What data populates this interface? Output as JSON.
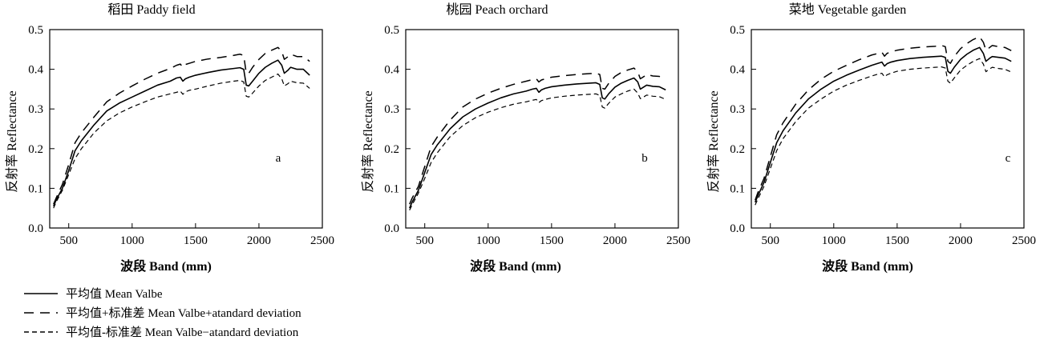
{
  "chart_data": [
    {
      "type": "line",
      "title": "稻田 Paddy field",
      "xlabel": "波段 Band (mm)",
      "ylabel": "反射率 Reflectance",
      "panel_letter": "a",
      "xlim": [
        350,
        2500
      ],
      "ylim": [
        0,
        0.5
      ],
      "xticks": [
        "500",
        "1000",
        "1500",
        "2000",
        "2500"
      ],
      "yticks": [
        "0.0",
        "0.1",
        "0.2",
        "0.3",
        "0.4",
        "0.5"
      ],
      "series": [
        {
          "name": "平均值 Mean Valbe",
          "style": "solid",
          "x": [
            380,
            400,
            450,
            500,
            550,
            600,
            700,
            800,
            900,
            1000,
            1100,
            1200,
            1300,
            1350,
            1380,
            1400,
            1420,
            1450,
            1500,
            1600,
            1700,
            1800,
            1850,
            1880,
            1900,
            1920,
            1950,
            2000,
            2050,
            2100,
            2150,
            2180,
            2200,
            2230,
            2250,
            2300,
            2350,
            2400
          ],
          "y": [
            0.055,
            0.07,
            0.1,
            0.145,
            0.195,
            0.22,
            0.26,
            0.295,
            0.315,
            0.33,
            0.345,
            0.36,
            0.37,
            0.378,
            0.38,
            0.37,
            0.376,
            0.38,
            0.385,
            0.392,
            0.398,
            0.402,
            0.404,
            0.4,
            0.36,
            0.358,
            0.37,
            0.39,
            0.405,
            0.415,
            0.423,
            0.41,
            0.39,
            0.398,
            0.405,
            0.4,
            0.4,
            0.385
          ]
        },
        {
          "name": "平均值+标准差 Mean Valbe+atandard deviation",
          "style": "dashed",
          "x": [
            380,
            400,
            450,
            500,
            550,
            600,
            700,
            800,
            900,
            1000,
            1100,
            1200,
            1300,
            1350,
            1380,
            1400,
            1420,
            1450,
            1500,
            1600,
            1700,
            1800,
            1850,
            1880,
            1900,
            1920,
            1950,
            2000,
            2050,
            2100,
            2150,
            2180,
            2200,
            2230,
            2250,
            2300,
            2350,
            2400
          ],
          "y": [
            0.06,
            0.075,
            0.11,
            0.16,
            0.215,
            0.24,
            0.28,
            0.318,
            0.34,
            0.358,
            0.375,
            0.39,
            0.402,
            0.41,
            0.413,
            0.405,
            0.412,
            0.415,
            0.42,
            0.426,
            0.43,
            0.435,
            0.438,
            0.435,
            0.39,
            0.39,
            0.405,
            0.425,
            0.44,
            0.448,
            0.455,
            0.445,
            0.425,
            0.432,
            0.438,
            0.432,
            0.432,
            0.42
          ]
        },
        {
          "name": "平均值-标准差 Mean Valbe−atandard deviation",
          "style": "short-dashed",
          "x": [
            380,
            400,
            450,
            500,
            550,
            600,
            700,
            800,
            900,
            1000,
            1100,
            1200,
            1300,
            1350,
            1380,
            1400,
            1420,
            1450,
            1500,
            1600,
            1700,
            1800,
            1850,
            1880,
            1900,
            1920,
            1950,
            2000,
            2050,
            2100,
            2150,
            2180,
            2200,
            2230,
            2250,
            2300,
            2350,
            2400
          ],
          "y": [
            0.05,
            0.065,
            0.095,
            0.135,
            0.175,
            0.2,
            0.24,
            0.27,
            0.29,
            0.305,
            0.318,
            0.33,
            0.338,
            0.342,
            0.345,
            0.337,
            0.343,
            0.347,
            0.35,
            0.358,
            0.365,
            0.37,
            0.372,
            0.368,
            0.332,
            0.33,
            0.34,
            0.358,
            0.372,
            0.38,
            0.388,
            0.376,
            0.358,
            0.364,
            0.37,
            0.366,
            0.365,
            0.352
          ]
        }
      ]
    },
    {
      "type": "line",
      "title": "桃园 Peach orchard",
      "xlabel": "波段 Band (mm)",
      "ylabel": "反射率 Reflectance",
      "panel_letter": "b",
      "xlim": [
        350,
        2500
      ],
      "ylim": [
        0,
        0.5
      ],
      "xticks": [
        "500",
        "1000",
        "1500",
        "2000",
        "2500"
      ],
      "yticks": [
        "0.0",
        "0.1",
        "0.2",
        "0.3",
        "0.4",
        "0.5"
      ],
      "series": [
        {
          "name": "平均值 Mean Valbe",
          "style": "solid",
          "x": [
            380,
            400,
            450,
            500,
            550,
            600,
            700,
            800,
            900,
            1000,
            1100,
            1200,
            1300,
            1350,
            1380,
            1400,
            1420,
            1450,
            1500,
            1600,
            1700,
            1800,
            1850,
            1880,
            1900,
            1920,
            1950,
            2000,
            2050,
            2100,
            2150,
            2180,
            2200,
            2230,
            2250,
            2300,
            2350,
            2400
          ],
          "y": [
            0.05,
            0.065,
            0.095,
            0.14,
            0.185,
            0.21,
            0.25,
            0.28,
            0.3,
            0.315,
            0.328,
            0.338,
            0.345,
            0.35,
            0.352,
            0.342,
            0.348,
            0.352,
            0.356,
            0.36,
            0.363,
            0.365,
            0.366,
            0.362,
            0.328,
            0.325,
            0.338,
            0.355,
            0.365,
            0.372,
            0.378,
            0.368,
            0.35,
            0.356,
            0.36,
            0.357,
            0.356,
            0.348
          ]
        },
        {
          "name": "平均值+标准差 Mean Valbe+atandard deviation",
          "style": "dashed",
          "x": [
            380,
            400,
            450,
            500,
            550,
            600,
            700,
            800,
            900,
            1000,
            1100,
            1200,
            1300,
            1350,
            1380,
            1400,
            1420,
            1450,
            1500,
            1600,
            1700,
            1800,
            1850,
            1880,
            1900,
            1920,
            1950,
            2000,
            2050,
            2100,
            2150,
            2180,
            2200,
            2230,
            2250,
            2300,
            2350,
            2400
          ],
          "y": [
            0.06,
            0.075,
            0.105,
            0.155,
            0.205,
            0.23,
            0.272,
            0.305,
            0.325,
            0.34,
            0.352,
            0.362,
            0.37,
            0.374,
            0.376,
            0.368,
            0.373,
            0.376,
            0.38,
            0.384,
            0.387,
            0.389,
            0.39,
            0.387,
            0.352,
            0.35,
            0.364,
            0.382,
            0.392,
            0.398,
            0.403,
            0.393,
            0.376,
            0.382,
            0.387,
            0.383,
            0.382,
            0.375
          ]
        },
        {
          "name": "平均值-标准差 Mean Valbe−atandard deviation",
          "style": "short-dashed",
          "x": [
            380,
            400,
            450,
            500,
            550,
            600,
            700,
            800,
            900,
            1000,
            1100,
            1200,
            1300,
            1350,
            1380,
            1400,
            1420,
            1450,
            1500,
            1600,
            1700,
            1800,
            1850,
            1880,
            1900,
            1920,
            1950,
            2000,
            2050,
            2100,
            2150,
            2180,
            2200,
            2230,
            2250,
            2300,
            2350,
            2400
          ],
          "y": [
            0.045,
            0.058,
            0.088,
            0.125,
            0.165,
            0.19,
            0.23,
            0.258,
            0.278,
            0.292,
            0.303,
            0.312,
            0.318,
            0.322,
            0.324,
            0.316,
            0.321,
            0.324,
            0.328,
            0.332,
            0.335,
            0.337,
            0.338,
            0.334,
            0.305,
            0.302,
            0.314,
            0.33,
            0.338,
            0.345,
            0.35,
            0.34,
            0.326,
            0.331,
            0.335,
            0.332,
            0.331,
            0.324
          ]
        }
      ]
    },
    {
      "type": "line",
      "title": "菜地 Vegetable garden",
      "xlabel": "波段 Band (mm)",
      "ylabel": "反射率 Reflectance",
      "panel_letter": "c",
      "xlim": [
        350,
        2500
      ],
      "ylim": [
        0,
        0.5
      ],
      "xticks": [
        "500",
        "1000",
        "1500",
        "2000",
        "2500"
      ],
      "yticks": [
        "0.0",
        "0.1",
        "0.2",
        "0.3",
        "0.4",
        "0.5"
      ],
      "series": [
        {
          "name": "平均值 Mean Valbe",
          "style": "solid",
          "x": [
            380,
            400,
            450,
            500,
            550,
            600,
            700,
            800,
            900,
            1000,
            1100,
            1200,
            1300,
            1350,
            1380,
            1400,
            1420,
            1450,
            1500,
            1600,
            1700,
            1800,
            1850,
            1880,
            1900,
            1920,
            1950,
            2000,
            2050,
            2100,
            2150,
            2180,
            2200,
            2230,
            2250,
            2300,
            2350,
            2400
          ],
          "y": [
            0.065,
            0.08,
            0.115,
            0.165,
            0.215,
            0.245,
            0.29,
            0.325,
            0.35,
            0.37,
            0.385,
            0.398,
            0.41,
            0.415,
            0.418,
            0.408,
            0.414,
            0.418,
            0.422,
            0.427,
            0.43,
            0.432,
            0.433,
            0.43,
            0.395,
            0.39,
            0.405,
            0.425,
            0.438,
            0.448,
            0.455,
            0.44,
            0.42,
            0.428,
            0.432,
            0.43,
            0.428,
            0.42
          ]
        },
        {
          "name": "平均值+标准差 Mean Valbe+atandard deviation",
          "style": "dashed",
          "x": [
            380,
            400,
            450,
            500,
            550,
            600,
            700,
            800,
            900,
            1000,
            1100,
            1200,
            1300,
            1350,
            1380,
            1400,
            1420,
            1450,
            1500,
            1600,
            1700,
            1800,
            1850,
            1880,
            1900,
            1920,
            1950,
            2000,
            2050,
            2100,
            2150,
            2180,
            2200,
            2230,
            2250,
            2300,
            2350,
            2400
          ],
          "y": [
            0.07,
            0.088,
            0.125,
            0.18,
            0.235,
            0.265,
            0.312,
            0.348,
            0.375,
            0.395,
            0.41,
            0.424,
            0.436,
            0.44,
            0.443,
            0.433,
            0.44,
            0.444,
            0.448,
            0.453,
            0.456,
            0.458,
            0.46,
            0.457,
            0.42,
            0.415,
            0.432,
            0.452,
            0.465,
            0.475,
            0.482,
            0.468,
            0.448,
            0.455,
            0.46,
            0.457,
            0.455,
            0.447
          ]
        },
        {
          "name": "平均值-标准差 Mean Valbe−atandard deviation",
          "style": "short-dashed",
          "x": [
            380,
            400,
            450,
            500,
            550,
            600,
            700,
            800,
            900,
            1000,
            1100,
            1200,
            1300,
            1350,
            1380,
            1400,
            1420,
            1450,
            1500,
            1600,
            1700,
            1800,
            1850,
            1880,
            1900,
            1920,
            1950,
            2000,
            2050,
            2100,
            2150,
            2180,
            2200,
            2230,
            2250,
            2300,
            2350,
            2400
          ],
          "y": [
            0.058,
            0.072,
            0.105,
            0.15,
            0.195,
            0.225,
            0.268,
            0.302,
            0.325,
            0.345,
            0.36,
            0.372,
            0.383,
            0.388,
            0.39,
            0.381,
            0.386,
            0.39,
            0.395,
            0.4,
            0.403,
            0.405,
            0.406,
            0.403,
            0.37,
            0.365,
            0.378,
            0.398,
            0.41,
            0.42,
            0.427,
            0.413,
            0.394,
            0.401,
            0.405,
            0.402,
            0.4,
            0.393
          ]
        }
      ]
    }
  ],
  "legend": {
    "items": [
      {
        "style": "solid",
        "label": "平均值 Mean Valbe"
      },
      {
        "style": "dashed",
        "label": "平均值+标准差 Mean Valbe+atandard deviation"
      },
      {
        "style": "short-dashed",
        "label": "平均值-标准差 Mean Valbe−atandard deviation"
      }
    ]
  }
}
